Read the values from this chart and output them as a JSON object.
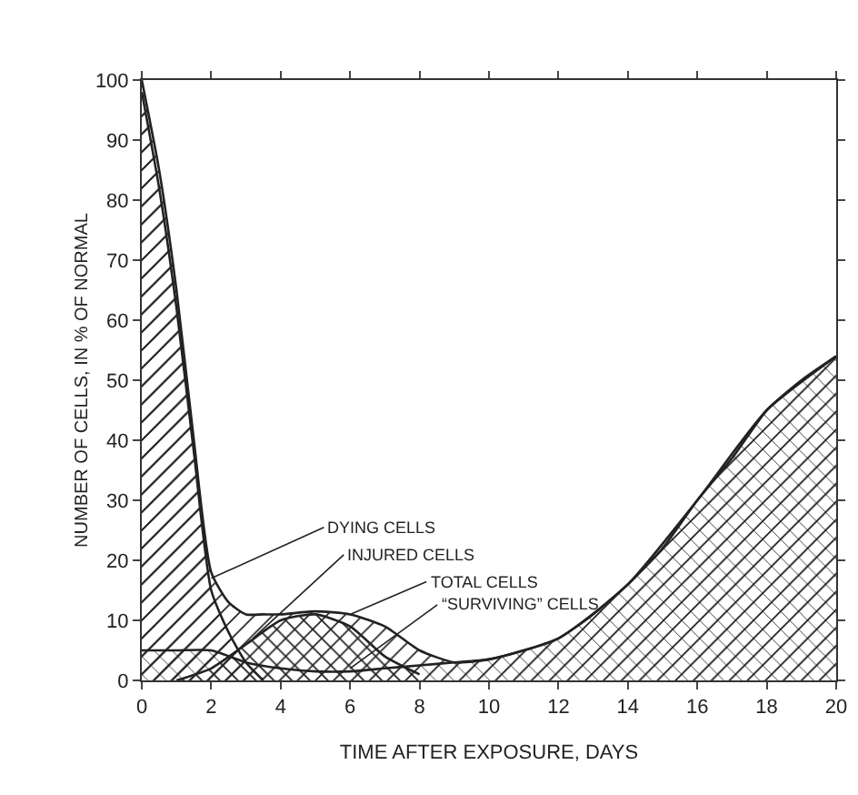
{
  "chart_data": {
    "type": "area",
    "xlabel": "TIME AFTER EXPOSURE, DAYS",
    "ylabel": "NUMBER OF CELLS, IN % OF NORMAL",
    "xlim": [
      0,
      20
    ],
    "xticks": [
      0,
      2,
      4,
      6,
      8,
      10,
      12,
      14,
      16,
      18,
      20
    ],
    "ylim": [
      0,
      100
    ],
    "yticks": [
      0,
      10,
      20,
      30,
      40,
      50,
      60,
      70,
      80,
      90,
      100
    ],
    "grid": false,
    "marker": "none",
    "line_style": "solid",
    "series": [
      {
        "color": "#222222",
        "x": [
          0,
          0.5,
          1,
          1.5,
          2,
          2.5,
          3,
          3.5,
          4,
          5,
          6,
          7,
          8,
          9,
          10,
          11,
          12,
          13,
          14,
          15,
          16,
          17,
          18,
          19,
          20
        ],
        "values": [
          100,
          85,
          65,
          40,
          18,
          13,
          11,
          11,
          11,
          11.5,
          11,
          9,
          5,
          3,
          3.5,
          5,
          7,
          11,
          16,
          22,
          30,
          37,
          45,
          50,
          54
        ]
      },
      {
        "color": "#222222",
        "x": [
          0,
          0.5,
          1,
          1.5,
          2,
          2.5,
          3,
          3.5
        ],
        "values": [
          98,
          82,
          62,
          38,
          15,
          8,
          3,
          0
        ]
      },
      {
        "color": "#222222",
        "x": [
          1,
          2,
          3,
          4,
          5,
          6,
          7,
          8
        ],
        "values": [
          0,
          2,
          6,
          10,
          11,
          9,
          4,
          1
        ]
      },
      {
        "color": "#222222",
        "x": [
          0,
          1,
          2,
          3,
          4,
          5,
          6,
          7,
          8,
          9,
          10,
          12,
          14,
          16,
          18,
          20
        ],
        "values": [
          5,
          5,
          5,
          3,
          2,
          1.5,
          1.5,
          2,
          2.5,
          3,
          3.5,
          7,
          16,
          30,
          45,
          54
        ]
      }
    ],
    "annotations": [
      {
        "text": "DYING CELLS",
        "x": 2,
        "y": 17
      },
      {
        "text": "INJURED CELLS",
        "x": 3.2,
        "y": 7
      },
      {
        "text": "TOTAL CELLS",
        "x": 6,
        "y": 11
      },
      {
        "text": "“SURVIVING” CELLS",
        "x": 6,
        "y": 2
      }
    ]
  }
}
